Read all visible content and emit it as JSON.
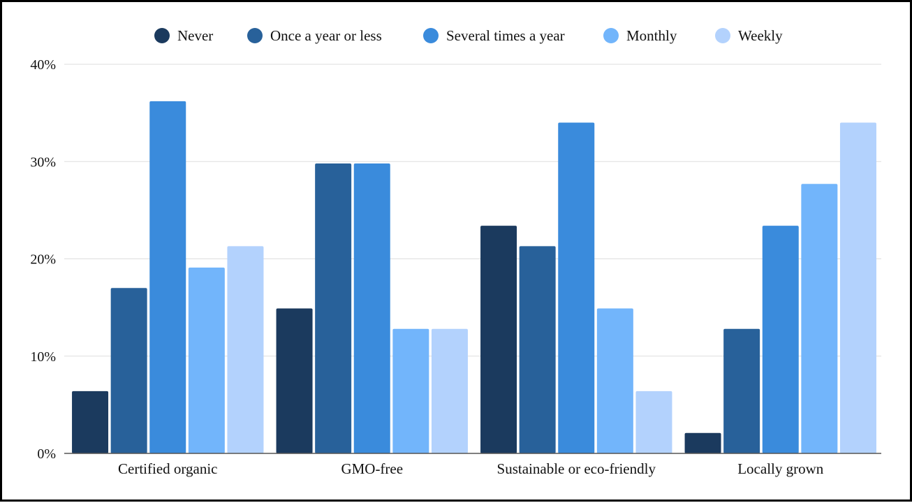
{
  "chart_data": {
    "type": "bar",
    "title": "",
    "xlabel": "",
    "ylabel": "",
    "categories": [
      "Certified organic",
      "GMO-free",
      "Sustainable or eco-friendly",
      "Locally grown"
    ],
    "series": [
      {
        "name": "Never",
        "color": "#1b3a5e",
        "values": [
          6.4,
          14.9,
          23.4,
          2.1
        ]
      },
      {
        "name": "Once a year or less",
        "color": "#28619a",
        "values": [
          17.0,
          29.8,
          21.3,
          12.8
        ]
      },
      {
        "name": "Several times a year",
        "color": "#3a8bdc",
        "values": [
          36.2,
          29.8,
          34.0,
          23.4
        ]
      },
      {
        "name": "Monthly",
        "color": "#72b5fb",
        "values": [
          19.1,
          12.8,
          14.9,
          27.7
        ]
      },
      {
        "name": "Weekly",
        "color": "#b3d2fd",
        "values": [
          21.3,
          12.8,
          6.4,
          34.0
        ]
      }
    ],
    "ylim": [
      0,
      40
    ],
    "yticks": [
      "0%",
      "10%",
      "20%",
      "30%",
      "40%"
    ],
    "ytick_values": [
      0,
      10,
      20,
      30,
      40
    ],
    "grid": true,
    "legend_position": "top"
  }
}
